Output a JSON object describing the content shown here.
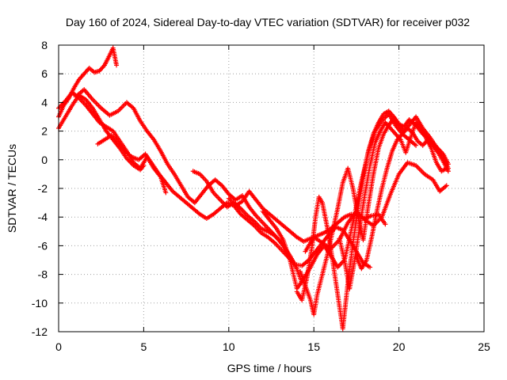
{
  "chart_data": {
    "type": "scatter",
    "title": "Day 160 of 2024, Sidereal Day-to-day VTEC variation (SDTVAR) for receiver p032",
    "xlabel": "GPS time / hours",
    "ylabel": "SDTVAR / TECUs",
    "xlim": [
      0,
      25
    ],
    "ylim": [
      -12,
      8
    ],
    "xticks": [
      "0",
      "5",
      "10",
      "15",
      "20",
      "25"
    ],
    "yticks": [
      "8",
      "6",
      "4",
      "2",
      "0",
      "-2",
      "-4",
      "-6",
      "-8",
      "-10",
      "-12"
    ],
    "grid": true,
    "marker": "+",
    "series_color": "#ff0000",
    "series": [
      {
        "x": [
          0.0,
          0.3,
          0.6,
          0.9,
          1.2,
          1.5,
          1.8,
          2.1,
          2.4,
          2.7,
          3.0,
          3.2,
          3.4
        ],
        "y": [
          3.0,
          3.8,
          4.3,
          5.0,
          5.6,
          6.0,
          6.4,
          6.1,
          6.2,
          6.6,
          7.3,
          7.8,
          6.6
        ]
      },
      {
        "x": [
          0.0,
          0.4,
          0.8,
          1.2,
          1.6,
          2.0,
          2.4,
          2.8,
          3.2,
          3.6,
          4.0,
          4.4,
          4.8,
          5.2,
          5.6,
          6.0,
          6.3
        ],
        "y": [
          3.6,
          4.1,
          4.7,
          4.3,
          3.8,
          3.2,
          2.6,
          2.3,
          2.0,
          1.3,
          0.6,
          -0.2,
          -0.6,
          0.2,
          -0.6,
          -1.2,
          -2.3
        ]
      },
      {
        "x": [
          0.0,
          0.4,
          0.8,
          1.2,
          1.6,
          2.0,
          2.4,
          2.8,
          3.2,
          3.6,
          4.0,
          4.4,
          4.8,
          5.0
        ],
        "y": [
          2.2,
          3.0,
          3.8,
          4.5,
          4.2,
          3.6,
          2.8,
          2.0,
          1.4,
          0.8,
          0.1,
          -0.4,
          -0.7,
          -0.4
        ]
      },
      {
        "x": [
          2.3,
          2.7,
          3.1,
          3.5,
          3.9,
          4.3,
          4.7,
          5.1,
          5.5,
          5.9,
          6.3,
          6.7,
          7.1,
          7.5,
          7.9,
          8.3,
          8.7,
          9.1,
          9.5,
          9.9,
          10.3,
          10.7,
          11.1,
          11.5,
          11.9,
          12.3,
          12.7,
          13.1,
          13.5,
          13.8
        ],
        "y": [
          1.1,
          1.4,
          1.7,
          1.2,
          0.6,
          0.2,
          0.0,
          0.4,
          -0.3,
          -1.0,
          -1.6,
          -2.2,
          -2.6,
          -3.0,
          -3.4,
          -3.8,
          -4.1,
          -3.8,
          -3.4,
          -3.0,
          -3.2,
          -3.8,
          -4.2,
          -4.6,
          -5.1,
          -5.4,
          -5.8,
          -6.3,
          -6.8,
          -7.2
        ]
      },
      {
        "x": [
          1.0,
          1.5,
          2.0,
          2.5,
          3.0,
          3.5,
          4.0,
          4.4,
          4.8,
          5.2,
          5.6,
          6.0,
          6.4,
          6.8,
          7.2,
          7.6,
          8.0,
          8.4,
          8.8,
          9.2,
          9.6,
          10.0,
          10.4,
          10.8,
          11.2,
          11.6,
          12.0,
          12.4,
          12.8,
          13.2,
          13.6,
          14.0,
          14.3
        ],
        "y": [
          4.4,
          4.9,
          4.2,
          3.6,
          3.1,
          3.4,
          4.0,
          3.6,
          2.7,
          2.0,
          1.4,
          0.6,
          -0.3,
          -1.0,
          -1.8,
          -2.6,
          -3.0,
          -2.4,
          -1.8,
          -1.4,
          -1.8,
          -2.4,
          -2.8,
          -2.5,
          -3.3,
          -3.9,
          -4.4,
          -4.9,
          -5.4,
          -6.0,
          -6.7,
          -7.6,
          -8.6
        ]
      },
      {
        "x": [
          7.9,
          8.3,
          8.7,
          9.1,
          9.5,
          9.9,
          10.3,
          10.7,
          11.1,
          11.5,
          11.9,
          12.3,
          12.7,
          13.1,
          13.5,
          13.9,
          14.3,
          14.7,
          15.1,
          15.5,
          15.9,
          16.3,
          16.7,
          17.1,
          17.5,
          17.9,
          18.3
        ],
        "y": [
          -0.8,
          -1.0,
          -1.5,
          -2.3,
          -2.8,
          -3.3,
          -3.0,
          -3.4,
          -3.9,
          -4.3,
          -4.8,
          -5.0,
          -5.3,
          -5.8,
          -6.6,
          -7.3,
          -7.4,
          -7.0,
          -6.4,
          -5.8,
          -5.2,
          -4.7,
          -4.9,
          -5.6,
          -6.4,
          -7.2,
          -7.5
        ]
      },
      {
        "x": [
          10.0,
          10.4,
          10.8,
          11.2,
          11.6,
          12.0,
          12.4,
          12.8,
          13.2,
          13.6,
          14.0,
          14.4,
          14.8,
          15.2,
          15.6,
          16.0,
          16.4,
          16.8,
          17.2,
          17.6,
          18.0,
          18.4,
          18.8,
          19.2
        ],
        "y": [
          -2.7,
          -3.2,
          -2.9,
          -2.2,
          -2.8,
          -3.4,
          -3.8,
          -4.2,
          -4.6,
          -5.0,
          -5.4,
          -5.7,
          -5.5,
          -5.3,
          -5.1,
          -4.8,
          -4.4,
          -4.0,
          -3.8,
          -3.9,
          -4.1,
          -3.9,
          -3.8,
          -4.5
        ]
      },
      {
        "x": [
          12.0,
          12.4,
          12.8,
          13.2,
          13.6,
          14.0,
          14.4,
          14.8,
          15.2,
          15.6,
          16.0,
          16.4,
          16.8,
          17.0,
          17.4,
          17.8,
          18.2,
          18.6,
          19.0,
          19.4,
          19.8,
          20.2,
          20.6,
          21.0
        ],
        "y": [
          -3.6,
          -4.2,
          -4.8,
          -5.6,
          -7.0,
          -9.0,
          -8.3,
          -7.5,
          -6.6,
          -6.0,
          -6.7,
          -7.5,
          -7.0,
          -6.0,
          -3.8,
          -1.5,
          0.5,
          2.0,
          2.7,
          3.2,
          2.4,
          1.8,
          1.4,
          1.0
        ]
      },
      {
        "x": [
          14.2,
          14.5,
          14.8,
          15.0,
          15.2,
          15.5,
          15.8,
          16.1,
          16.4,
          16.7,
          17.0,
          17.3,
          17.6,
          17.9,
          18.2,
          18.5,
          18.8,
          19.1,
          19.4,
          19.7,
          20.0,
          20.3,
          20.6,
          21.0,
          21.4,
          21.8,
          22.2,
          22.6,
          22.9
        ],
        "y": [
          -7.8,
          -8.8,
          -9.8,
          -10.8,
          -9.4,
          -8.0,
          -6.6,
          -5.0,
          -3.4,
          -1.6,
          -0.6,
          -2.0,
          -4.0,
          -5.6,
          -3.2,
          -1.0,
          0.8,
          1.8,
          2.4,
          2.9,
          2.4,
          2.0,
          2.4,
          3.0,
          2.2,
          1.6,
          0.9,
          0.2,
          -0.6
        ]
      },
      {
        "x": [
          14.0,
          14.3,
          14.6,
          14.9,
          15.1,
          15.3,
          15.5,
          15.8,
          16.1,
          16.4,
          16.7,
          17.0,
          17.3,
          17.6,
          17.9,
          18.2,
          18.5,
          18.8,
          19.1,
          19.4,
          19.7,
          20.0,
          20.3,
          20.6,
          21.0,
          21.4,
          21.8,
          22.2,
          22.6,
          22.9
        ],
        "y": [
          -9.2,
          -9.8,
          -8.2,
          -6.0,
          -4.0,
          -2.6,
          -3.0,
          -4.8,
          -7.0,
          -9.4,
          -11.8,
          -8.6,
          -5.8,
          -3.4,
          -1.2,
          0.6,
          1.8,
          2.6,
          3.2,
          3.4,
          3.0,
          2.5,
          2.3,
          2.8,
          2.4,
          1.8,
          1.4,
          0.9,
          0.4,
          -0.3
        ]
      },
      {
        "x": [
          16.5,
          16.8,
          17.1,
          17.4,
          17.7,
          18.0,
          18.3,
          18.6,
          18.9,
          19.2,
          19.5,
          19.8,
          20.1,
          20.4,
          20.7,
          21.0,
          21.3,
          21.6,
          21.9,
          22.2,
          22.5,
          22.8
        ],
        "y": [
          -5.5,
          -7.0,
          -9.0,
          -7.0,
          -4.6,
          -2.4,
          -0.4,
          1.2,
          2.0,
          2.6,
          2.2,
          1.8,
          1.4,
          0.5,
          1.6,
          2.6,
          2.2,
          1.5,
          0.8,
          -0.2,
          -0.8,
          -0.6
        ]
      },
      {
        "x": [
          14.5,
          15.0,
          15.5,
          16.0,
          16.5,
          17.0,
          17.5,
          18.0,
          18.5,
          19.0,
          19.5,
          20.0,
          20.5,
          21.0,
          21.5,
          22.0,
          22.4,
          22.8
        ],
        "y": [
          -6.4,
          -5.4,
          -5.8,
          -6.2,
          -5.6,
          -4.4,
          -3.6,
          -4.2,
          -4.6,
          -4.0,
          -2.4,
          -1.0,
          -0.2,
          -0.4,
          -1.0,
          -1.4,
          -2.2,
          -1.8
        ]
      },
      {
        "x": [
          17.5,
          17.8,
          18.1,
          18.4,
          18.7,
          19.0,
          19.3,
          19.6,
          19.9,
          20.2,
          20.5,
          20.8,
          21.1,
          21.4,
          21.7,
          22.0,
          22.3,
          22.6,
          22.9
        ],
        "y": [
          -6.8,
          -7.6,
          -7.0,
          -5.4,
          -3.6,
          -2.0,
          -0.6,
          0.6,
          1.4,
          1.8,
          2.2,
          1.9,
          1.3,
          1.0,
          1.4,
          1.0,
          0.5,
          -0.1,
          -0.8
        ]
      }
    ]
  }
}
